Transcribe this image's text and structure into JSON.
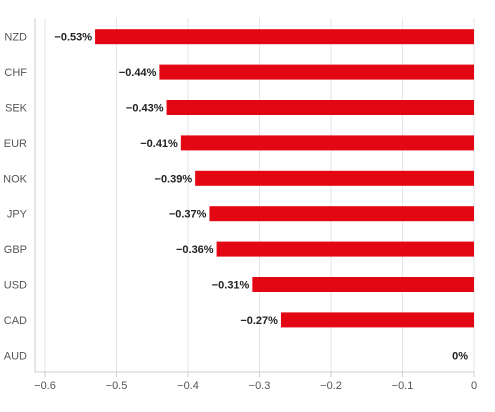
{
  "chart_data": {
    "type": "bar",
    "orientation": "horizontal",
    "categories": [
      "NZD",
      "CHF",
      "SEK",
      "EUR",
      "NOK",
      "JPY",
      "GBP",
      "USD",
      "CAD",
      "AUD"
    ],
    "values": [
      -0.53,
      -0.44,
      -0.43,
      -0.41,
      -0.39,
      -0.37,
      -0.36,
      -0.31,
      -0.27,
      0
    ],
    "data_labels": [
      "−0.53%",
      "−0.44%",
      "−0.43%",
      "−0.41%",
      "−0.39%",
      "−0.37%",
      "−0.36%",
      "−0.31%",
      "−0.27%",
      "0%"
    ],
    "xlim": [
      -0.6,
      0
    ],
    "x_ticks": [
      -0.6,
      -0.5,
      -0.4,
      -0.3,
      -0.2,
      -0.1,
      0
    ],
    "x_tick_labels": [
      "−0.6",
      "−0.5",
      "−0.4",
      "−0.3",
      "−0.2",
      "−0.1",
      "0"
    ],
    "bar_color": "#e30613",
    "grid": true,
    "title": "",
    "xlabel": "",
    "ylabel": ""
  }
}
